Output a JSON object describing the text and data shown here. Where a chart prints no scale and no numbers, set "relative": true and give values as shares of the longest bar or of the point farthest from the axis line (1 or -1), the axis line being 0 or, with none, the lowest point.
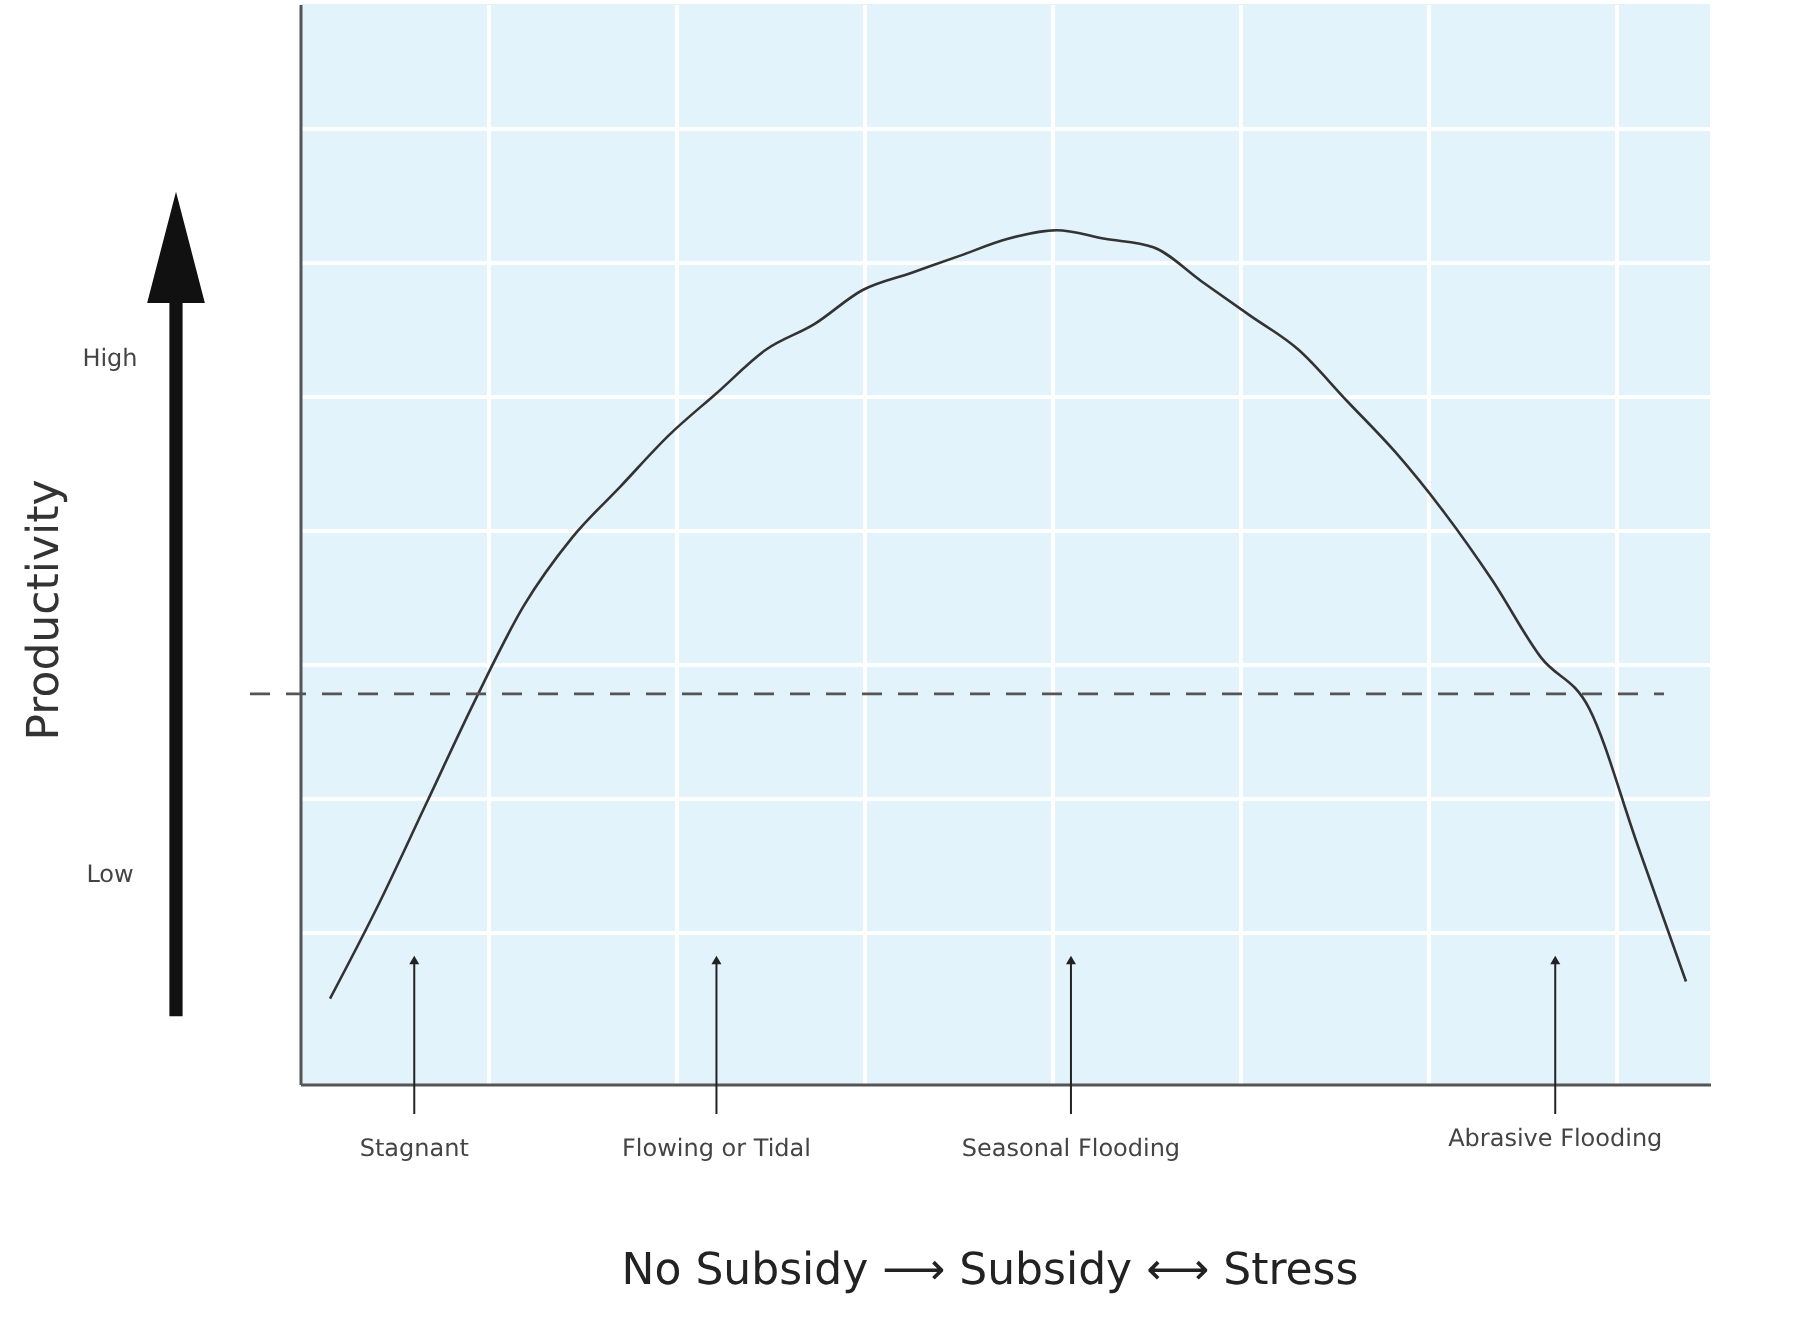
{
  "chart_data": {
    "type": "line",
    "relative": true,
    "categories": [
      null,
      null,
      null,
      null,
      null,
      null,
      null,
      null,
      null,
      null,
      null,
      null,
      null,
      null,
      null,
      null,
      null,
      null,
      null,
      null,
      null,
      null,
      null,
      null,
      null,
      null,
      null,
      null,
      null
    ],
    "values": [
      0.1,
      0.21,
      0.33,
      0.45,
      0.56,
      0.64,
      0.7,
      0.76,
      0.81,
      0.86,
      0.89,
      0.93,
      0.95,
      0.97,
      0.99,
      1.0,
      0.99,
      0.98,
      0.94,
      0.9,
      0.86,
      0.8,
      0.74,
      0.67,
      0.59,
      0.5,
      0.44,
      0.28,
      0.12
    ],
    "color": "#333333",
    "line_style": "solid",
    "marker": "none",
    "grid": true,
    "tick_labels": false,
    "xlabel": "No Subsidy ⟶ Subsidy ⟷ Stress",
    "ref_lines": [
      {
        "axis": "y",
        "value": 0.457,
        "line_style": "dashed",
        "color": "#555555"
      }
    ],
    "annotations": [
      "Productivity",
      "High",
      "Low",
      "Stagnant",
      "Flowing or Tidal",
      "Seasonal Flooding",
      "Abrasive Flooding"
    ]
  }
}
